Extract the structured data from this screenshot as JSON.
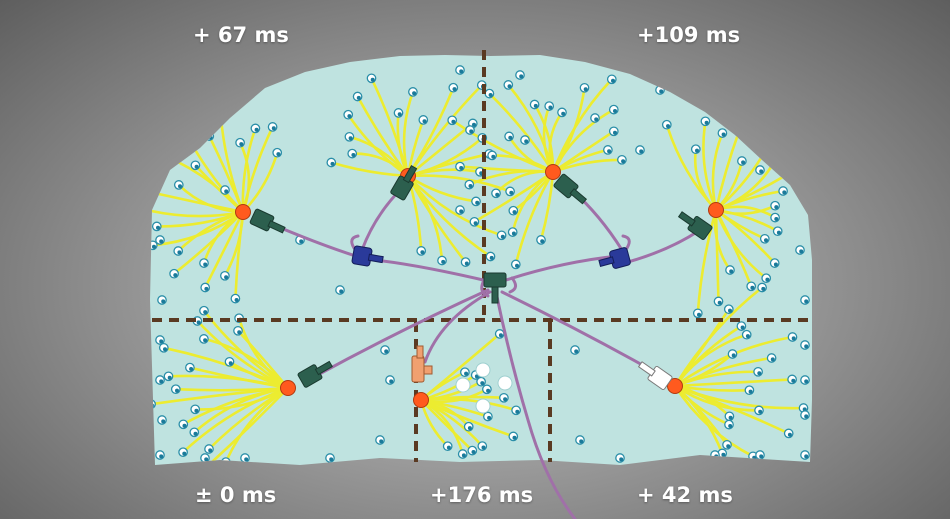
{
  "labels": {
    "top_left": "+ 67 ms",
    "top_right": "+109 ms",
    "bottom_left": "± 0 ms",
    "bottom_center": "+176 ms",
    "bottom_right": "+ 42 ms"
  },
  "colors": {
    "region_fill": "#bfe3e0",
    "divider": "#5a3a22",
    "fiber": "#ecec30",
    "cable": "#a070a8",
    "node": "#ff5a1e",
    "mic_body": "#2c5f4e",
    "splitter": "#2a3a9a",
    "peach_mic": "#f0a070",
    "white_mic": "#ffffff"
  }
}
